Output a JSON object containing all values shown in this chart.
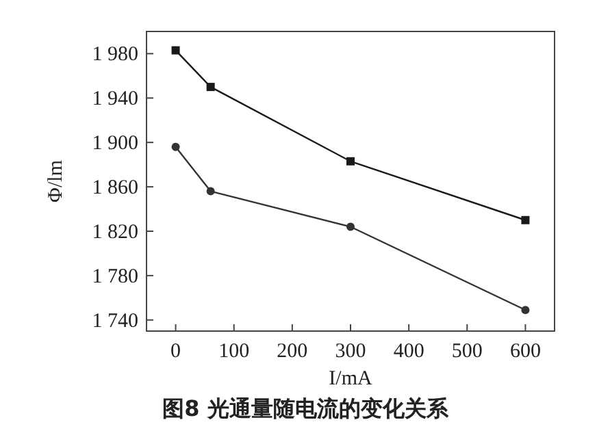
{
  "chart_data": {
    "type": "line",
    "title": "图8  光通量随电流的变化关系",
    "xlabel": "I/mA",
    "ylabel": "Φ/lm",
    "xlim": [
      -50,
      650
    ],
    "ylim": [
      1730,
      2000
    ],
    "xticks": [
      0,
      100,
      200,
      300,
      400,
      500,
      600
    ],
    "yticks": [
      {
        "value": 1740,
        "label": "1 740"
      },
      {
        "value": 1780,
        "label": "1 780"
      },
      {
        "value": 1820,
        "label": "1 820"
      },
      {
        "value": 1860,
        "label": "1 860"
      },
      {
        "value": 1900,
        "label": "1 900"
      },
      {
        "value": 1940,
        "label": "1 940"
      },
      {
        "value": 1980,
        "label": "1 980"
      }
    ],
    "grid": false,
    "line_style": "solid",
    "series": [
      {
        "color": "#1a1a1a",
        "marker": "square",
        "x": [
          0,
          60,
          300,
          600
        ],
        "values": [
          1983,
          1950,
          1883,
          1830
        ]
      },
      {
        "color": "#333333",
        "marker": "circle",
        "x": [
          0,
          60,
          300,
          600
        ],
        "values": [
          1896,
          1856,
          1824,
          1749
        ]
      }
    ]
  }
}
